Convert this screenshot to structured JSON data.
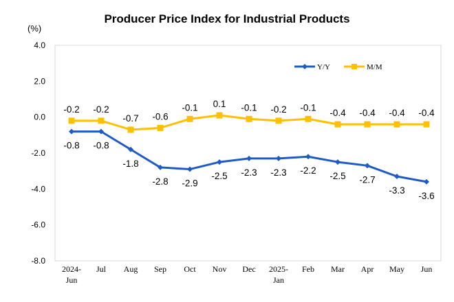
{
  "chart_data": {
    "type": "line",
    "title": "Producer Price Index for Industrial Products",
    "ylabel": "(%)",
    "xlabel": "",
    "ylim": [
      -8.0,
      4.0
    ],
    "yticks": [
      "4.0",
      "2.0",
      "0.0",
      "-2.0",
      "-4.0",
      "-6.0",
      "-8.0"
    ],
    "ytick_values": [
      4,
      2,
      0,
      -2,
      -4,
      -6,
      -8
    ],
    "categories": [
      "2024-Jun",
      "Jul",
      "Aug",
      "Sep",
      "Oct",
      "Nov",
      "Dec",
      "2025-Jan",
      "Feb",
      "Mar",
      "Apr",
      "May",
      "Jun"
    ],
    "category_lines": [
      [
        "2024-",
        "Jun"
      ],
      [
        "Jul"
      ],
      [
        "Aug"
      ],
      [
        "Sep"
      ],
      [
        "Oct"
      ],
      [
        "Nov"
      ],
      [
        "Dec"
      ],
      [
        "2025-",
        "Jan"
      ],
      [
        "Feb"
      ],
      [
        "Mar"
      ],
      [
        "Apr"
      ],
      [
        "May"
      ],
      [
        "Jun"
      ]
    ],
    "grid": false,
    "legend_position": "top-right",
    "series": [
      {
        "name": "Y/Y",
        "color": "#1f5bc6",
        "marker": "diamond",
        "label_position": "below",
        "values": [
          -0.8,
          -0.8,
          -1.8,
          -2.8,
          -2.9,
          -2.5,
          -2.3,
          -2.3,
          -2.2,
          -2.5,
          -2.7,
          -3.3,
          -3.6
        ],
        "labels": [
          "-0.8",
          "-0.8",
          "-1.8",
          "-2.8",
          "-2.9",
          "-2.5",
          "-2.3",
          "-2.3",
          "-2.2",
          "-2.5",
          "-2.7",
          "-3.3",
          "-3.6"
        ]
      },
      {
        "name": "M/M",
        "color": "#ffc000",
        "marker": "square",
        "label_position": "above",
        "values": [
          -0.2,
          -0.2,
          -0.7,
          -0.6,
          -0.1,
          0.1,
          -0.1,
          -0.2,
          -0.1,
          -0.4,
          -0.4,
          -0.4,
          -0.4
        ],
        "labels": [
          "-0.2",
          "-0.2",
          "-0.7",
          "-0.6",
          "-0.1",
          "0.1",
          "-0.1",
          "-0.2",
          "-0.1",
          "-0.4",
          "-0.4",
          "-0.4",
          "-0.4"
        ]
      }
    ]
  }
}
